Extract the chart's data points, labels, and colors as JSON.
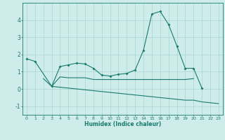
{
  "xlabel": "Humidex (Indice chaleur)",
  "ylabel": "",
  "background_color": "#ceecea",
  "grid_color": "#aed8d4",
  "line_color": "#1a7a6e",
  "x_values": [
    0,
    1,
    2,
    3,
    4,
    5,
    6,
    7,
    8,
    9,
    10,
    11,
    12,
    13,
    14,
    15,
    16,
    17,
    18,
    19,
    20,
    21,
    22,
    23
  ],
  "line1_y": [
    1.75,
    1.6,
    null,
    0.15,
    1.3,
    1.4,
    1.5,
    1.45,
    1.2,
    0.8,
    0.75,
    0.85,
    0.9,
    1.1,
    2.25,
    4.35,
    4.5,
    3.75,
    2.5,
    1.2,
    1.2,
    0.05,
    null,
    null
  ],
  "line2_y": [
    null,
    null,
    0.6,
    0.15,
    0.7,
    0.65,
    0.65,
    0.65,
    0.55,
    0.55,
    0.55,
    0.55,
    0.55,
    0.55,
    0.55,
    0.55,
    0.55,
    0.55,
    0.55,
    0.55,
    0.6,
    null,
    null,
    null
  ],
  "line3_y": [
    null,
    null,
    null,
    0.15,
    0.1,
    0.05,
    0.0,
    -0.05,
    -0.1,
    -0.15,
    -0.2,
    -0.25,
    -0.3,
    -0.35,
    -0.4,
    -0.45,
    -0.5,
    -0.55,
    -0.6,
    -0.65,
    -0.65,
    -0.75,
    -0.8,
    -0.85
  ],
  "ylim": [
    -1.5,
    5.0
  ],
  "xlim": [
    -0.5,
    23.5
  ],
  "yticks": [
    -1,
    0,
    1,
    2,
    3,
    4
  ],
  "xticks": [
    0,
    1,
    2,
    3,
    4,
    5,
    6,
    7,
    8,
    9,
    10,
    11,
    12,
    13,
    14,
    15,
    16,
    17,
    18,
    19,
    20,
    21,
    22,
    23
  ]
}
